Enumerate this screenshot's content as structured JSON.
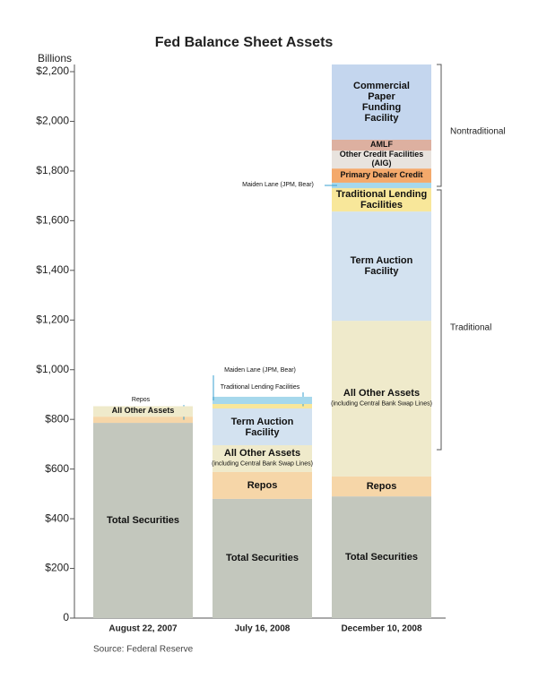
{
  "chart_data": {
    "type": "stacked_bar",
    "title": "Fed Balance Sheet Assets",
    "y_label": "Billions",
    "source": "Source: Federal Reserve",
    "categories": [
      "August 22, 2007",
      "July 16, 2008",
      "December 10, 2008"
    ],
    "ylim": [
      0,
      2200
    ],
    "yticks": [
      0,
      {
        "value": 200,
        "label": "$200"
      },
      {
        "value": 400,
        "label": "$400"
      },
      {
        "value": 600,
        "label": "$600"
      },
      {
        "value": 800,
        "label": "$800"
      },
      {
        "value": 1000,
        "label": "$1,000"
      },
      {
        "value": 1200,
        "label": "$1,200"
      },
      {
        "value": 1400,
        "label": "$1,400"
      },
      {
        "value": 1600,
        "label": "$1,600"
      },
      {
        "value": 1800,
        "label": "$1,800"
      },
      {
        "value": 2000,
        "label": "$2,000"
      },
      {
        "value": 2200,
        "label": "$2,200"
      }
    ],
    "series": [
      {
        "name": "Total Securities",
        "color": "#c3c7bd",
        "values": [
          786,
          480,
          490
        ]
      },
      {
        "name": "Repos",
        "color": "#f6d6a8",
        "values": [
          25,
          108,
          80
        ]
      },
      {
        "name": "All Other Assets",
        "color": "#efeacb",
        "values": [
          42,
          108,
          627
        ],
        "notes": [
          null,
          "(including Central Bank Swap Lines)",
          "(including Central Bank Swap Lines)"
        ]
      },
      {
        "name": "Term Auction Facility",
        "color": "#d3e2f0",
        "values": [
          null,
          148,
          440
        ]
      },
      {
        "name": "Traditional Lending Facilities",
        "color": "#f8e79a",
        "values": [
          null,
          18,
          94
        ]
      },
      {
        "name": "Maiden Lane (JPM, Bear)",
        "color": "#a6d8ec",
        "values": [
          null,
          29,
          22
        ]
      },
      {
        "name": "Primary Dealer Credit",
        "color": "#f4a96b",
        "values": [
          null,
          null,
          57
        ]
      },
      {
        "name": "Other Credit Facilities (AIG)",
        "color": "#e8e3de",
        "values": [
          null,
          null,
          72
        ]
      },
      {
        "name": "AMLF",
        "color": "#ddb0a0",
        "values": [
          null,
          null,
          44
        ]
      },
      {
        "name": "Commercial Paper Funding Facility",
        "color": "#c4d6ee",
        "values": [
          null,
          null,
          303
        ]
      }
    ],
    "annotations": [
      "Nontraditional",
      "Traditional"
    ]
  }
}
